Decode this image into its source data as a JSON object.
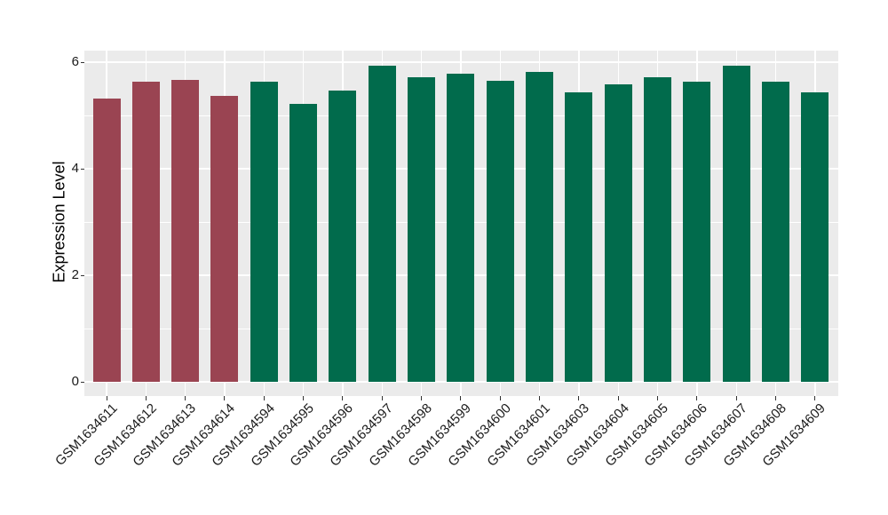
{
  "figure": {
    "background": "#FFFFFF",
    "panel_background": "#EBEBEB",
    "grid_color": "#FFFFFF",
    "text_color": "#000000"
  },
  "chart_data": {
    "type": "bar",
    "title": "",
    "xlabel": "",
    "ylabel": "Expression Level",
    "grid": true,
    "legend_position": "none",
    "ylim": [
      0,
      6.3
    ],
    "y_ticks": [
      0,
      2,
      4,
      6
    ],
    "y_minor_ticks": [
      1,
      3,
      5
    ],
    "categories": [
      "GSM1634611",
      "GSM1634612",
      "GSM1634613",
      "GSM1634614",
      "GSM1634594",
      "GSM1634595",
      "GSM1634596",
      "GSM1634597",
      "GSM1634598",
      "GSM1634599",
      "GSM1634600",
      "GSM1634601",
      "GSM1634603",
      "GSM1634604",
      "GSM1634605",
      "GSM1634606",
      "GSM1634607",
      "GSM1634608",
      "GSM1634609"
    ],
    "values": [
      5.31,
      5.63,
      5.67,
      5.36,
      5.64,
      5.22,
      5.46,
      5.93,
      5.72,
      5.79,
      5.65,
      5.82,
      5.44,
      5.58,
      5.71,
      5.63,
      5.94,
      5.64,
      5.44
    ],
    "bar_colors": [
      "#9A4452",
      "#9A4452",
      "#9A4452",
      "#9A4452",
      "#016B4C",
      "#016B4C",
      "#016B4C",
      "#016B4C",
      "#016B4C",
      "#016B4C",
      "#016B4C",
      "#016B4C",
      "#016B4C",
      "#016B4C",
      "#016B4C",
      "#016B4C",
      "#016B4C",
      "#016B4C",
      "#016B4C"
    ],
    "group_color_legend": {
      "maroon": "#9A4452",
      "green": "#016B4C"
    }
  }
}
